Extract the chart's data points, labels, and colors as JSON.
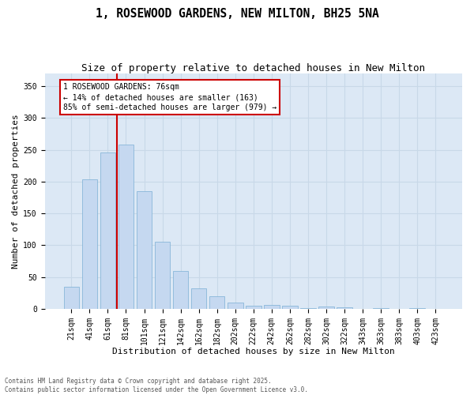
{
  "title": "1, ROSEWOOD GARDENS, NEW MILTON, BH25 5NA",
  "subtitle": "Size of property relative to detached houses in New Milton",
  "xlabel": "Distribution of detached houses by size in New Milton",
  "ylabel": "Number of detached properties",
  "categories": [
    "21sqm",
    "41sqm",
    "61sqm",
    "81sqm",
    "101sqm",
    "121sqm",
    "142sqm",
    "162sqm",
    "182sqm",
    "202sqm",
    "222sqm",
    "242sqm",
    "262sqm",
    "282sqm",
    "302sqm",
    "322sqm",
    "343sqm",
    "363sqm",
    "383sqm",
    "403sqm",
    "423sqm"
  ],
  "values": [
    35,
    203,
    246,
    258,
    185,
    106,
    59,
    32,
    20,
    10,
    5,
    6,
    5,
    1,
    4,
    2,
    0,
    1,
    0,
    1,
    0
  ],
  "bar_color": "#c5d8f0",
  "bar_edge_color": "#7bafd4",
  "grid_color": "#c8d8e8",
  "background_color": "#dce8f5",
  "vline_color": "#cc0000",
  "vline_index": 2.5,
  "annotation_text": "1 ROSEWOOD GARDENS: 76sqm\n← 14% of detached houses are smaller (163)\n85% of semi-detached houses are larger (979) →",
  "annotation_box_edgecolor": "#cc0000",
  "footer_text": "Contains HM Land Registry data © Crown copyright and database right 2025.\nContains public sector information licensed under the Open Government Licence v3.0.",
  "ylim": [
    0,
    370
  ],
  "yticks": [
    0,
    50,
    100,
    150,
    200,
    250,
    300,
    350
  ],
  "title_fontsize": 10.5,
  "subtitle_fontsize": 9,
  "xlabel_fontsize": 8,
  "ylabel_fontsize": 8,
  "tick_fontsize": 7,
  "ann_fontsize": 7,
  "footer_fontsize": 5.5
}
